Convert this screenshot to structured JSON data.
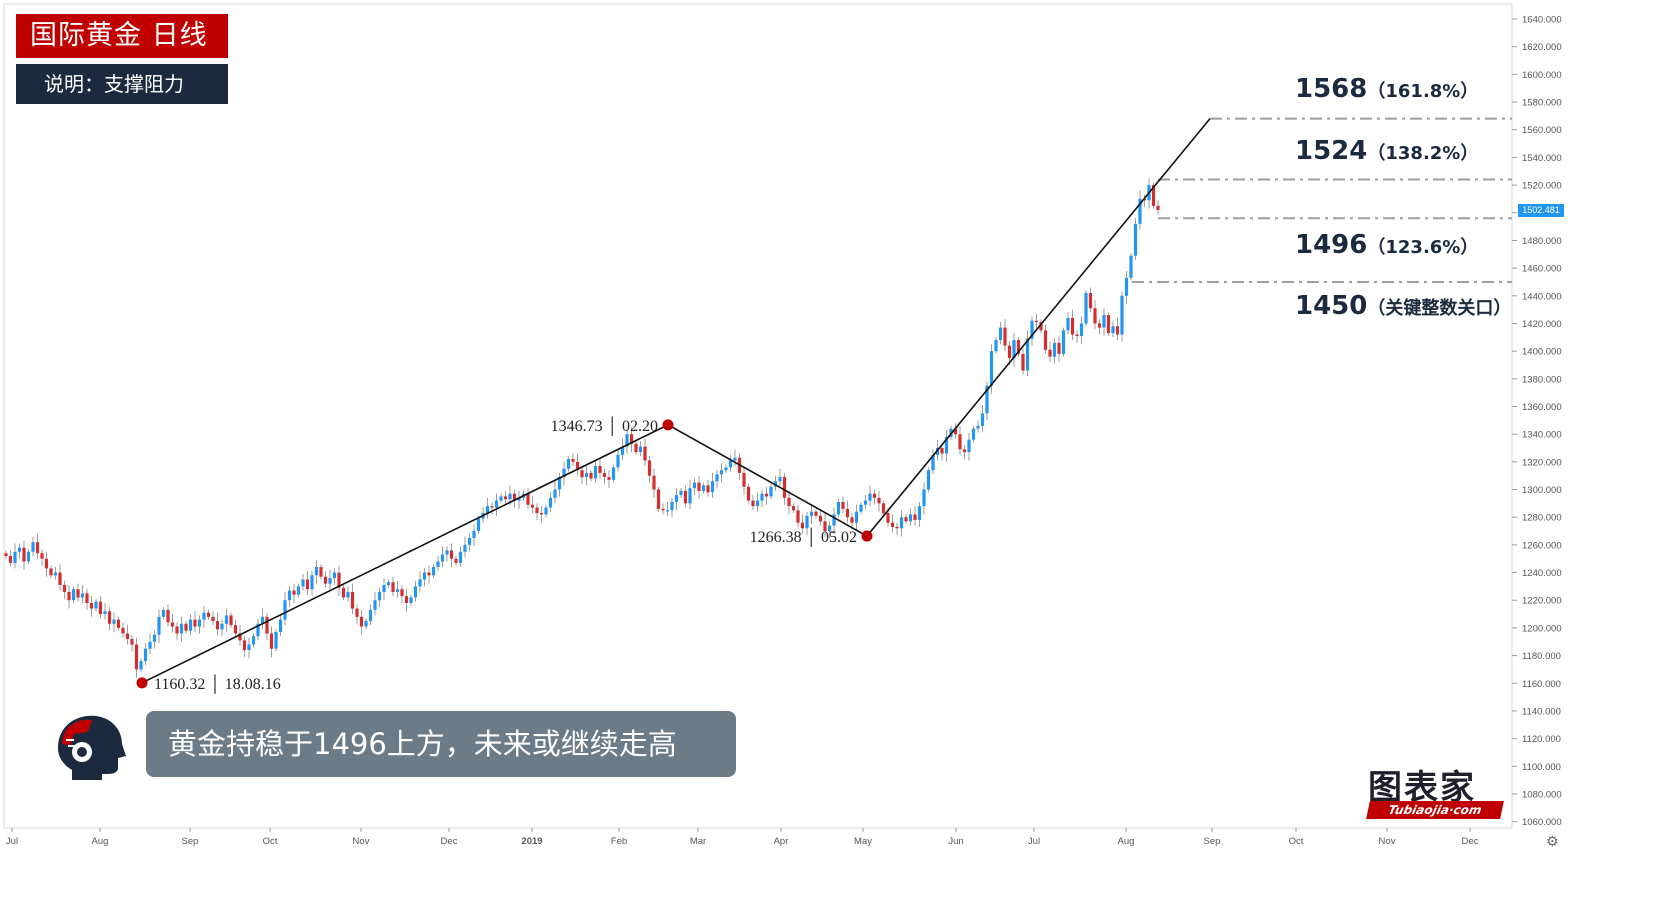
{
  "header": {
    "title": "国际黄金  日线",
    "subtitle": "说明：支撑阻力"
  },
  "caption": "黄金持稳于1496上方，未来或继续走高",
  "watermark": {
    "name": "图表家",
    "url": "Tubiaojia·com"
  },
  "current_price": "1502.481",
  "colors": {
    "up": "#2196f3",
    "down": "#d32f2f",
    "pivot": "#c00000",
    "title_bg": "#c00000",
    "sub_bg": "#1b2a3e",
    "caption_bg": "#6c7b88"
  },
  "icons": {
    "avatar": "tech-head-icon",
    "settings": "gear-icon"
  },
  "chart_data": {
    "type": "candlestick",
    "y_axis": {
      "ylim": [
        1050,
        1650
      ],
      "ticks": [
        "1060.000",
        "1080.000",
        "1100.000",
        "1120.000",
        "1140.000",
        "1160.000",
        "1180.000",
        "1200.000",
        "1220.000",
        "1240.000",
        "1260.000",
        "1280.000",
        "1300.000",
        "1320.000",
        "1340.000",
        "1360.000",
        "1380.000",
        "1400.000",
        "1420.000",
        "1440.000",
        "1460.000",
        "1480.000",
        "1500.000",
        "1520.000",
        "1540.000",
        "1560.000",
        "1580.000",
        "1600.000",
        "1620.000",
        "1640.000"
      ],
      "position": "right"
    },
    "x_axis": {
      "ticks": [
        "Jul",
        "Aug",
        "Sep",
        "Oct",
        "Nov",
        "Dec",
        "2019",
        "Feb",
        "Mar",
        "Apr",
        "May",
        "Jun",
        "Jul",
        "Aug",
        "Sep",
        "Oct",
        "Nov",
        "Dec"
      ]
    },
    "pivots": [
      {
        "label": "1160.32 │ 18.08.16",
        "month": "Aug",
        "value": 1160.32,
        "label_side": "right"
      },
      {
        "label": "1346.73 │ 02.20",
        "month": "Feb",
        "value": 1346.73,
        "label_side": "left"
      },
      {
        "label": "1266.38 │ 05.02",
        "month": "May",
        "value": 1266.38,
        "label_side": "left"
      }
    ],
    "levels": [
      {
        "value": 1568,
        "label": "1568",
        "pct": "（161.8%）"
      },
      {
        "value": 1524,
        "label": "1524",
        "pct": "（138.2%）"
      },
      {
        "value": 1496,
        "label": "1496",
        "pct": "（123.6%）"
      },
      {
        "value": 1450,
        "label": "1450",
        "pct": "（关键整数关口）"
      }
    ],
    "closes": [
      1252,
      1247,
      1255,
      1258,
      1248,
      1255,
      1262,
      1254,
      1250,
      1243,
      1238,
      1240,
      1231,
      1226,
      1220,
      1228,
      1222,
      1225,
      1218,
      1214,
      1219,
      1210,
      1212,
      1203,
      1206,
      1200,
      1196,
      1192,
      1188,
      1170,
      1176,
      1185,
      1190,
      1195,
      1208,
      1213,
      1204,
      1201,
      1196,
      1203,
      1198,
      1206,
      1201,
      1206,
      1211,
      1208,
      1205,
      1199,
      1203,
      1209,
      1202,
      1196,
      1191,
      1184,
      1188,
      1194,
      1203,
      1208,
      1196,
      1185,
      1197,
      1206,
      1220,
      1227,
      1224,
      1230,
      1235,
      1228,
      1238,
      1244,
      1237,
      1232,
      1236,
      1240,
      1229,
      1222,
      1226,
      1214,
      1208,
      1201,
      1205,
      1213,
      1220,
      1226,
      1231,
      1233,
      1226,
      1228,
      1223,
      1218,
      1222,
      1230,
      1235,
      1240,
      1238,
      1244,
      1248,
      1253,
      1256,
      1250,
      1247,
      1255,
      1260,
      1265,
      1270,
      1279,
      1283,
      1288,
      1287,
      1292,
      1295,
      1293,
      1297,
      1292,
      1294,
      1297,
      1289,
      1287,
      1283,
      1282,
      1287,
      1294,
      1300,
      1309,
      1315,
      1322,
      1320,
      1314,
      1309,
      1312,
      1308,
      1317,
      1312,
      1309,
      1307,
      1316,
      1325,
      1331,
      1340,
      1333,
      1327,
      1331,
      1321,
      1310,
      1300,
      1286,
      1285,
      1285,
      1291,
      1296,
      1299,
      1290,
      1301,
      1305,
      1299,
      1303,
      1298,
      1306,
      1311,
      1314,
      1316,
      1321,
      1323,
      1312,
      1302,
      1292,
      1288,
      1292,
      1297,
      1295,
      1302,
      1306,
      1309,
      1294,
      1288,
      1285,
      1276,
      1272,
      1281,
      1284,
      1281,
      1277,
      1270,
      1274,
      1282,
      1291,
      1286,
      1280,
      1276,
      1284,
      1289,
      1292,
      1297,
      1294,
      1290,
      1283,
      1276,
      1273,
      1272,
      1280,
      1277,
      1282,
      1278,
      1288,
      1300,
      1314,
      1325,
      1330,
      1326,
      1338,
      1344,
      1340,
      1329,
      1327,
      1336,
      1344,
      1346,
      1355,
      1375,
      1400,
      1408,
      1417,
      1404,
      1395,
      1408,
      1398,
      1386,
      1409,
      1422,
      1421,
      1415,
      1401,
      1396,
      1406,
      1398,
      1415,
      1424,
      1412,
      1411,
      1420,
      1442,
      1431,
      1420,
      1417,
      1426,
      1413,
      1418,
      1412,
      1440,
      1453,
      1469,
      1492,
      1510,
      1509,
      1520,
      1505,
      1502
    ]
  }
}
